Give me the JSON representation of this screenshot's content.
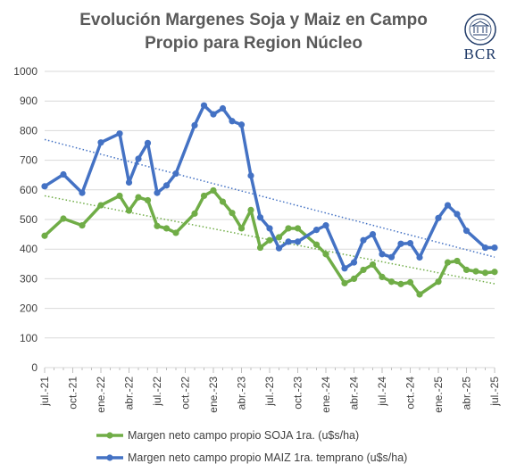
{
  "chart_data": {
    "type": "line",
    "title_line1": "Evolución Margenes Soja y Maiz  en Campo",
    "title_line2": "Propio para Region Núcleo",
    "logo_text": "BCR",
    "ylim": [
      0,
      1000
    ],
    "y_ticks": [
      "0",
      "100",
      "200",
      "300",
      "400",
      "500",
      "600",
      "700",
      "800",
      "900",
      "1000"
    ],
    "x_ticks": [
      "jul.-21",
      "oct.-21",
      "ene.-22",
      "abr.-22",
      "jul.-22",
      "oct.-22",
      "ene.-23",
      "abr.-23",
      "jul.-23",
      "oct.-23",
      "ene.-24",
      "abr.-24",
      "jul.-24",
      "oct.-24",
      "ene.-25",
      "abr.-25",
      "jul.-25"
    ],
    "grid": true,
    "legend_position": "bottom",
    "series": [
      {
        "name": "Margen neto campo propio SOJA 1ra. (u$s/ha)",
        "color": "#70ad47",
        "points": [
          [
            0,
            445
          ],
          [
            2,
            503
          ],
          [
            4,
            480
          ],
          [
            6,
            548
          ],
          [
            8,
            580
          ],
          [
            9,
            530
          ],
          [
            10,
            575
          ],
          [
            11,
            565
          ],
          [
            12,
            478
          ],
          [
            13,
            470
          ],
          [
            14,
            455
          ],
          [
            16,
            520
          ],
          [
            17,
            580
          ],
          [
            18,
            598
          ],
          [
            19,
            560
          ],
          [
            20,
            522
          ],
          [
            21,
            470
          ],
          [
            22,
            532
          ],
          [
            23,
            405
          ],
          [
            24,
            430
          ],
          [
            25,
            440
          ],
          [
            26,
            470
          ],
          [
            27,
            470
          ],
          [
            29,
            415
          ],
          [
            30,
            383
          ],
          [
            32,
            285
          ],
          [
            33,
            300
          ],
          [
            34,
            330
          ],
          [
            35,
            348
          ],
          [
            36,
            306
          ],
          [
            37,
            290
          ],
          [
            38,
            282
          ],
          [
            39,
            288
          ],
          [
            40,
            247
          ],
          [
            42,
            290
          ],
          [
            43,
            355
          ],
          [
            44,
            360
          ],
          [
            45,
            330
          ],
          [
            46,
            325
          ],
          [
            47,
            320
          ],
          [
            48,
            323
          ]
        ]
      },
      {
        "name": "Margen neto campo propio MAIZ 1ra. temprano (u$s/ha)",
        "color": "#4472c4",
        "points": [
          [
            0,
            612
          ],
          [
            2,
            652
          ],
          [
            4,
            590
          ],
          [
            6,
            760
          ],
          [
            8,
            790
          ],
          [
            9,
            625
          ],
          [
            10,
            705
          ],
          [
            11,
            758
          ],
          [
            12,
            590
          ],
          [
            13,
            615
          ],
          [
            14,
            655
          ],
          [
            16,
            818
          ],
          [
            17,
            885
          ],
          [
            18,
            855
          ],
          [
            19,
            875
          ],
          [
            20,
            832
          ],
          [
            21,
            820
          ],
          [
            22,
            648
          ],
          [
            23,
            507
          ],
          [
            24,
            470
          ],
          [
            25,
            403
          ],
          [
            26,
            425
          ],
          [
            27,
            425
          ],
          [
            29,
            465
          ],
          [
            30,
            480
          ],
          [
            32,
            335
          ],
          [
            33,
            355
          ],
          [
            34,
            430
          ],
          [
            35,
            450
          ],
          [
            36,
            383
          ],
          [
            37,
            373
          ],
          [
            38,
            418
          ],
          [
            39,
            420
          ],
          [
            40,
            372
          ],
          [
            42,
            505
          ],
          [
            43,
            548
          ],
          [
            44,
            518
          ],
          [
            45,
            462
          ],
          [
            47,
            405
          ],
          [
            48,
            405
          ]
        ]
      }
    ],
    "trendlines": [
      {
        "series": "SOJA",
        "color": "#70ad47",
        "x": [
          0,
          48
        ],
        "y": [
          580,
          283
        ]
      },
      {
        "series": "MAIZ",
        "color": "#4472c4",
        "x": [
          0,
          48
        ],
        "y": [
          770,
          373
        ]
      }
    ]
  }
}
